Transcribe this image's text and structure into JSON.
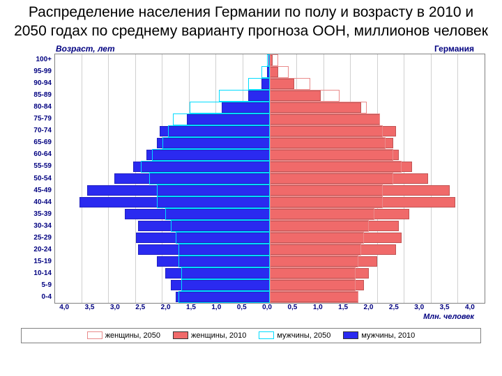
{
  "title": "Распределение населения Германии по полу и возрасту в 2010 и 2050 годах по среднему варианту прогноза ООН, миллионов человек",
  "chart": {
    "type": "population-pyramid",
    "y_axis_title": "Возраст, лет",
    "country_label": "Германия",
    "x_axis_title": "Млн. человек",
    "background_color": "#ffffff",
    "grid_color": "#d0d0d0",
    "axis_label_color": "#000080",
    "xlim": 4.0,
    "x_ticks_left": [
      "4,0",
      "3,5",
      "3,0",
      "2,5",
      "2,0",
      "1,5",
      "1,0",
      "0,5",
      "0,0"
    ],
    "x_ticks_right": [
      "0,5",
      "1,0",
      "1,5",
      "2,0",
      "2,5",
      "3,0",
      "3,5",
      "4,0"
    ],
    "age_labels": [
      "100+",
      "95-99",
      "90-94",
      "85-89",
      "80-84",
      "75-79",
      "70-74",
      "65-69",
      "60-64",
      "55-59",
      "50-54",
      "45-49",
      "40-44",
      "35-39",
      "30-34",
      "25-29",
      "20-24",
      "15-19",
      "10-14",
      "5-9",
      "0-4"
    ],
    "colors": {
      "men_2010": "#2a2af0",
      "men_2050": "#00dcff",
      "women_2010": "#f06a6a",
      "women_2050": "#e98a8a"
    },
    "men_2010": [
      0.02,
      0.05,
      0.15,
      0.4,
      0.9,
      1.55,
      2.05,
      2.1,
      2.3,
      2.55,
      2.9,
      3.4,
      3.55,
      2.7,
      2.45,
      2.5,
      2.45,
      2.1,
      1.95,
      1.85,
      1.75
    ],
    "men_2050": [
      0.05,
      0.15,
      0.4,
      0.95,
      1.5,
      1.8,
      1.9,
      2.0,
      2.2,
      2.4,
      2.25,
      2.1,
      2.1,
      1.95,
      1.85,
      1.75,
      1.7,
      1.7,
      1.65,
      1.65,
      1.7
    ],
    "women_2010": [
      0.05,
      0.15,
      0.45,
      0.95,
      1.7,
      2.05,
      2.35,
      2.3,
      2.4,
      2.65,
      2.95,
      3.35,
      3.45,
      2.6,
      2.4,
      2.45,
      2.35,
      2.0,
      1.85,
      1.75,
      1.65
    ],
    "women_2050": [
      0.15,
      0.35,
      0.75,
      1.3,
      1.8,
      2.05,
      2.1,
      2.15,
      2.3,
      2.45,
      2.3,
      2.1,
      2.1,
      1.95,
      1.85,
      1.75,
      1.7,
      1.65,
      1.6,
      1.6,
      1.65
    ]
  },
  "legend": {
    "items": [
      {
        "label": "женщины, 2050",
        "fill": "#ffffff",
        "border": "#e98a8a"
      },
      {
        "label": "женщины, 2010",
        "fill": "#f06a6a",
        "border": "#333333"
      },
      {
        "label": "мужчины, 2050",
        "fill": "#ffffff",
        "border": "#00dcff"
      },
      {
        "label": "мужчины, 2010",
        "fill": "#2a2af0",
        "border": "#333333"
      }
    ]
  }
}
